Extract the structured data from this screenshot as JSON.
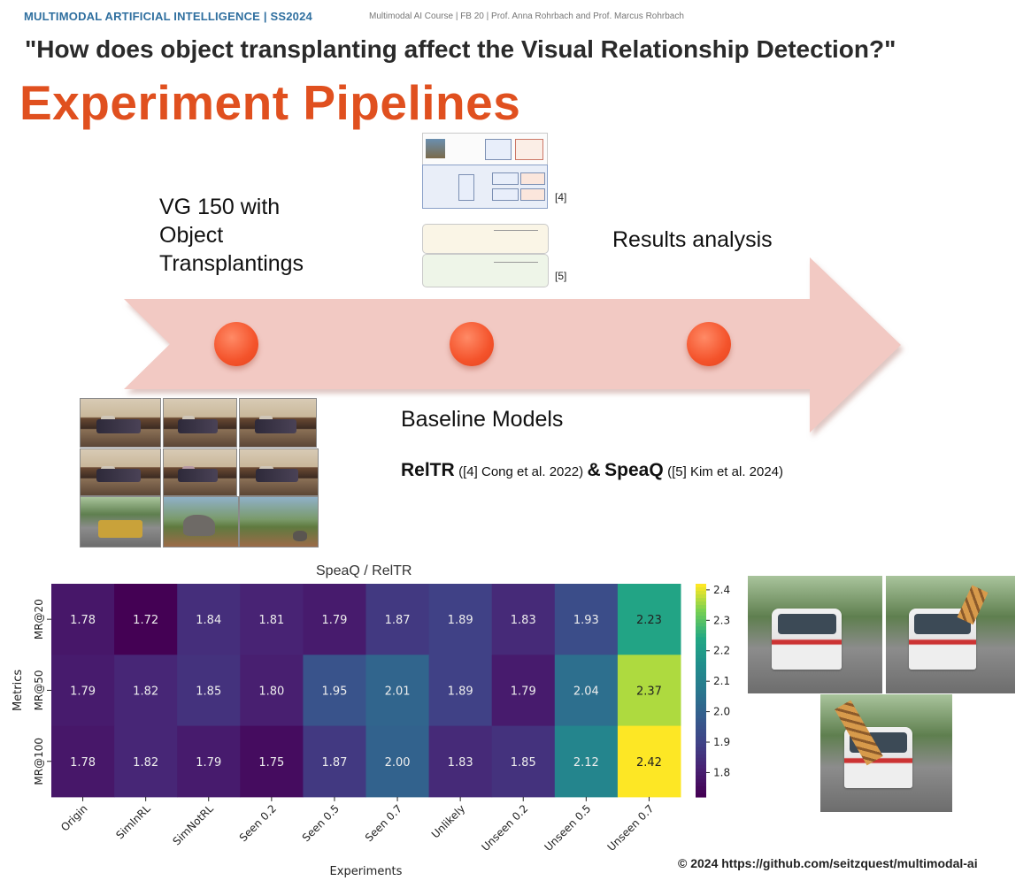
{
  "header": {
    "course": "MULTIMODAL ARTIFICIAL INTELLIGENCE | SS2024",
    "info": "Multimodal AI Course | FB 20 | Prof. Anna Rohrbach and Prof. Marcus Rohrbach"
  },
  "question": "\"How does object transplanting affect the Visual Relationship Detection?\"",
  "title": "Experiment Pipelines",
  "pipeline": {
    "stage1": [
      "VG 150 with",
      "Object",
      "Transplantings"
    ],
    "stage2": "Baseline Models",
    "stage3": "Results analysis",
    "ref4": "[4]",
    "ref5": "[5]",
    "models": {
      "model1": "RelTR",
      "model1_ref": "([4] Cong et al. 2022)",
      "amp": "&",
      "model2": "SpeaQ",
      "model2_ref": "([5] Kim et al. 2024)"
    }
  },
  "colors": {
    "accent": "#e0501f",
    "header_blue": "#2f6f9f",
    "arrow": "#f2c9c3",
    "dot": "#f4532b"
  },
  "chart_data": {
    "type": "heatmap",
    "title": "SpeaQ / RelTR",
    "xlabel": "Experiments",
    "ylabel": "Metrics",
    "x": [
      "Origin",
      "SimInRL",
      "SimNotRL",
      "Seen 0.2",
      "Seen 0.5",
      "Seen 0.7",
      "Unlikely",
      "Unseen 0.2",
      "Unseen 0.5",
      "Unseen 0.7"
    ],
    "y": [
      "MR@20",
      "MR@50",
      "MR@100"
    ],
    "values": [
      [
        1.78,
        1.72,
        1.84,
        1.81,
        1.79,
        1.87,
        1.89,
        1.83,
        1.93,
        2.23
      ],
      [
        1.79,
        1.82,
        1.85,
        1.8,
        1.95,
        2.01,
        1.89,
        1.79,
        2.04,
        2.37
      ],
      [
        1.78,
        1.82,
        1.79,
        1.75,
        1.87,
        2.0,
        1.83,
        1.85,
        2.12,
        2.42
      ]
    ],
    "colormap": "viridis",
    "vmin": 1.72,
    "vmax": 2.42,
    "colorbar_ticks": [
      "1.8",
      "1.9",
      "2.0",
      "2.1",
      "2.2",
      "2.3",
      "2.4"
    ]
  },
  "credit": "© 2024 https://github.com/seitzquest/multimodal-ai"
}
